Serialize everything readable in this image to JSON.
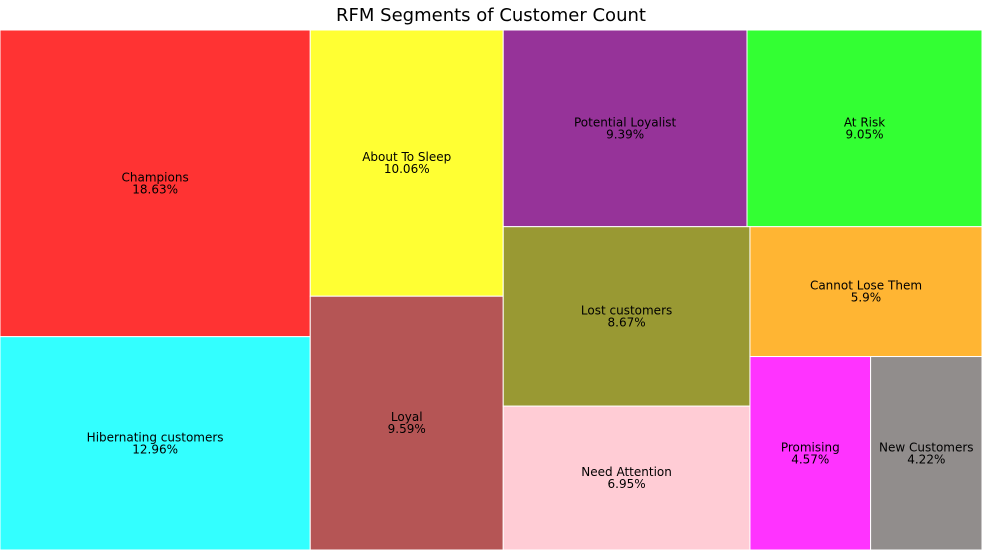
{
  "chart_data": {
    "type": "treemap",
    "title": "RFM Segments of Customer Count",
    "segments": [
      {
        "label": "Champions",
        "pct_label": "18.63%",
        "value": 18.63,
        "color": "#ff3333"
      },
      {
        "label": "Hibernating customers",
        "pct_label": "12.96%",
        "value": 12.96,
        "color": "#33ffff"
      },
      {
        "label": "About To Sleep",
        "pct_label": "10.06%",
        "value": 10.06,
        "color": "#ffff33"
      },
      {
        "label": "Loyal",
        "pct_label": "9.59%",
        "value": 9.59,
        "color": "#b55555"
      },
      {
        "label": "Potential Loyalist",
        "pct_label": "9.39%",
        "value": 9.39,
        "color": "#963399"
      },
      {
        "label": "At Risk",
        "pct_label": "9.05%",
        "value": 9.05,
        "color": "#33ff33"
      },
      {
        "label": "Lost customers",
        "pct_label": "8.67%",
        "value": 8.67,
        "color": "#999933"
      },
      {
        "label": "Need Attention",
        "pct_label": "6.95%",
        "value": 6.95,
        "color": "#ffccd5"
      },
      {
        "label": "Cannot Lose Them",
        "pct_label": "5.9%",
        "value": 5.9,
        "color": "#ffb533"
      },
      {
        "label": "Promising",
        "pct_label": "4.57%",
        "value": 4.57,
        "color": "#ff33ff"
      },
      {
        "label": "New Customers",
        "pct_label": "4.22%",
        "value": 4.22,
        "color": "#918d8c"
      }
    ]
  }
}
